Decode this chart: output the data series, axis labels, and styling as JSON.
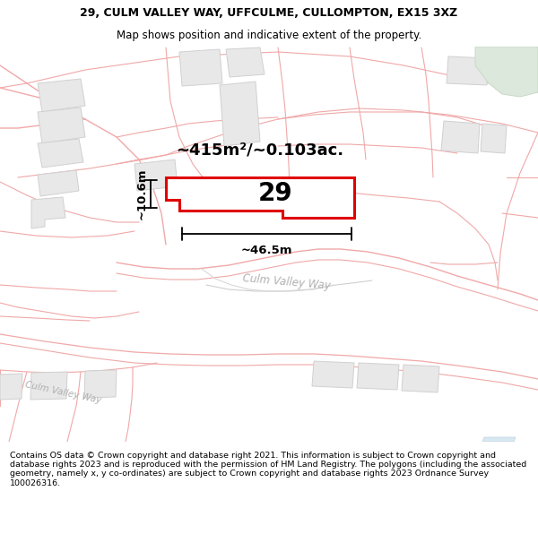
{
  "title_line1": "29, CULM VALLEY WAY, UFFCULME, CULLOMPTON, EX15 3XZ",
  "title_line2": "Map shows position and indicative extent of the property.",
  "area_label": "~415m²/~0.103ac.",
  "plot_number": "29",
  "width_label": "~46.5m",
  "height_label": "~10.6m",
  "footer_text": "Contains OS data © Crown copyright and database right 2021. This information is subject to Crown copyright and database rights 2023 and is reproduced with the permission of HM Land Registry. The polygons (including the associated geometry, namely x, y co-ordinates) are subject to Crown copyright and database rights 2023 Ordnance Survey 100026316.",
  "bg_color": "#ffffff",
  "map_bg": "#ffffff",
  "plot_fill": "#ffffff",
  "plot_edge": "#e00000",
  "road_outline": "#f0a8a8",
  "building_fill": "#e8e8e8",
  "building_edge": "#d0d0d0",
  "green_fill": "#dce8dc",
  "road_label_color": "#b0b0b0",
  "title_fontsize": 9.0,
  "subtitle_fontsize": 8.5,
  "footer_fontsize": 6.8,
  "plot_label_fontsize": 20,
  "area_label_fontsize": 13,
  "meas_label_fontsize": 9.5
}
